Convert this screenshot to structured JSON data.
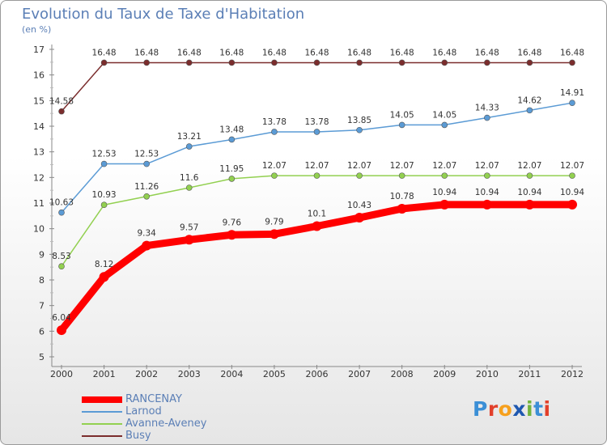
{
  "header": {
    "title": "Evolution du Taux de Taxe d'Habitation",
    "subtitle": "(en %)"
  },
  "chart_data": {
    "type": "line",
    "title": "Evolution du Taux de Taxe d'Habitation",
    "ylabel": "(en %)",
    "xlabel": "",
    "x": [
      "2000",
      "2001",
      "2002",
      "2003",
      "2004",
      "2005",
      "2006",
      "2007",
      "2008",
      "2009",
      "2010",
      "2011",
      "2012"
    ],
    "ylim": [
      5,
      17
    ],
    "yticks": [
      5,
      6,
      7,
      8,
      9,
      10,
      11,
      12,
      13,
      14,
      15,
      16,
      17
    ],
    "grid": false,
    "legend_position": "bottom-left",
    "series": [
      {
        "name": "RANCENAY",
        "color": "#ff0000",
        "values": [
          6.04,
          8.12,
          9.34,
          9.57,
          9.76,
          9.79,
          10.1,
          10.43,
          10.78,
          10.94,
          10.94,
          10.94,
          10.94
        ],
        "labels": [
          "6.04",
          "8.12",
          "9.34",
          "9.57",
          "9.76",
          "9.79",
          "10.1",
          "10.43",
          "10.78",
          "10.94",
          "10.94",
          "10.94",
          "10.94"
        ]
      },
      {
        "name": "Larnod",
        "color": "#5b9bd5",
        "values": [
          10.63,
          12.53,
          12.53,
          13.21,
          13.48,
          13.78,
          13.78,
          13.85,
          14.05,
          14.05,
          14.33,
          14.62,
          14.91
        ],
        "labels": [
          "10.63",
          "12.53",
          "12.53",
          "13.21",
          "13.48",
          "13.78",
          "13.78",
          "13.85",
          "14.05",
          "14.05",
          "14.33",
          "14.62",
          "14.91"
        ]
      },
      {
        "name": "Avanne-Aveney",
        "color": "#92d050",
        "values": [
          8.53,
          10.93,
          11.26,
          11.6,
          11.95,
          12.07,
          12.07,
          12.07,
          12.07,
          12.07,
          12.07,
          12.07,
          12.07
        ],
        "labels": [
          "8.53",
          "10.93",
          "11.26",
          "11.6",
          "11.95",
          "12.07",
          "12.07",
          "12.07",
          "12.07",
          "12.07",
          "12.07",
          "12.07",
          "12.07"
        ]
      },
      {
        "name": "Busy",
        "color": "#7b2d2d",
        "values": [
          14.58,
          16.48,
          16.48,
          16.48,
          16.48,
          16.48,
          16.48,
          16.48,
          16.48,
          16.48,
          16.48,
          16.48,
          16.48
        ],
        "labels": [
          "14.58",
          "16.48",
          "16.48",
          "16.48",
          "16.48",
          "16.48",
          "16.48",
          "16.48",
          "16.48",
          "16.48",
          "16.48",
          "16.48",
          "16.48"
        ]
      }
    ]
  },
  "logo": {
    "text": "Proxiti",
    "letters": [
      "P",
      "r",
      "o",
      "x",
      "i",
      "t",
      "i"
    ]
  }
}
